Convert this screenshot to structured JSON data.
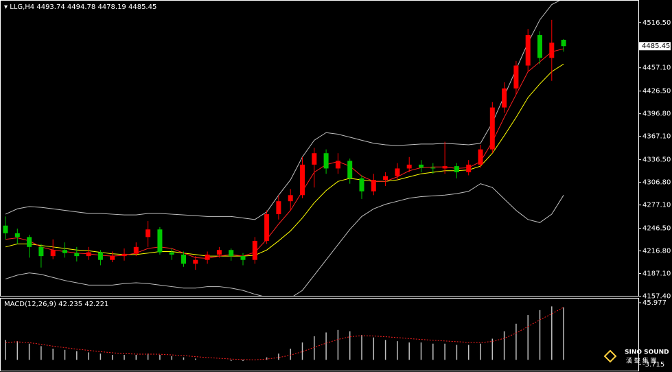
{
  "chart_data": [
    {
      "type": "candlestick",
      "title": "LLG,H4",
      "up_color": "#ff0000",
      "down_color": "#00c800",
      "wick_color": "#ffffff",
      "ylim": [
        4157,
        4546
      ],
      "yticks": [
        {
          "value": 4516.5,
          "label": "4516.50"
        },
        {
          "value": 4457.1,
          "label": "4457.10"
        },
        {
          "value": 4426.5,
          "label": "4426.50"
        },
        {
          "value": 4396.8,
          "label": "4396.80"
        },
        {
          "value": 4367.1,
          "label": "4367.10"
        },
        {
          "value": 4336.5,
          "label": "4336.50"
        },
        {
          "value": 4306.8,
          "label": "4306.80"
        },
        {
          "value": 4277.1,
          "label": "4277.10"
        },
        {
          "value": 4246.5,
          "label": "4246.50"
        },
        {
          "value": 4216.8,
          "label": "4216.80"
        },
        {
          "value": 4187.1,
          "label": "4187.10"
        },
        {
          "value": 4157.4,
          "label": "4157.40"
        }
      ],
      "open": [
        4250,
        4240,
        4235,
        4222,
        4210,
        4218,
        4214,
        4210,
        4215,
        4205,
        4210,
        4213,
        4235,
        4245,
        4215,
        4212,
        4200,
        4205,
        4212,
        4218,
        4210,
        4205,
        4230,
        4265,
        4282,
        4290,
        4330,
        4345,
        4325,
        4335,
        4312,
        4295,
        4310,
        4315,
        4325,
        4330,
        4326,
        4325,
        4328,
        4320,
        4330,
        4350,
        4405,
        4430,
        4460,
        4500,
        4470,
        4493.74
      ],
      "high": [
        4262,
        4246,
        4238,
        4226,
        4232,
        4228,
        4222,
        4222,
        4218,
        4216,
        4220,
        4228,
        4256,
        4248,
        4220,
        4216,
        4210,
        4216,
        4222,
        4220,
        4214,
        4235,
        4270,
        4290,
        4298,
        4340,
        4352,
        4350,
        4345,
        4338,
        4316,
        4318,
        4320,
        4332,
        4340,
        4336,
        4332,
        4360,
        4332,
        4336,
        4356,
        4412,
        4438,
        4466,
        4508,
        4505,
        4520,
        4494.78
      ],
      "low": [
        4232,
        4226,
        4208,
        4195,
        4206,
        4208,
        4203,
        4205,
        4198,
        4202,
        4204,
        4210,
        4222,
        4212,
        4205,
        4196,
        4192,
        4200,
        4208,
        4204,
        4198,
        4200,
        4226,
        4258,
        4270,
        4286,
        4300,
        4318,
        4318,
        4305,
        4285,
        4290,
        4302,
        4310,
        4320,
        4320,
        4318,
        4318,
        4312,
        4316,
        4326,
        4345,
        4398,
        4422,
        4452,
        4462,
        4440,
        4478.19
      ],
      "close": [
        4240,
        4235,
        4222,
        4210,
        4218,
        4214,
        4210,
        4215,
        4205,
        4210,
        4213,
        4222,
        4245,
        4215,
        4212,
        4200,
        4205,
        4212,
        4218,
        4210,
        4205,
        4230,
        4265,
        4282,
        4290,
        4330,
        4345,
        4325,
        4335,
        4312,
        4295,
        4310,
        4315,
        4325,
        4330,
        4326,
        4325,
        4328,
        4320,
        4330,
        4350,
        4405,
        4430,
        4460,
        4500,
        4470,
        4490,
        4485.45
      ],
      "band_color": "#c0c0c0",
      "bands_upper": [
        4265,
        4272,
        4275,
        4274,
        4272,
        4270,
        4268,
        4266,
        4266,
        4265,
        4264,
        4264,
        4266,
        4266,
        4265,
        4264,
        4263,
        4262,
        4262,
        4262,
        4260,
        4258,
        4268,
        4290,
        4310,
        4340,
        4362,
        4372,
        4370,
        4366,
        4362,
        4358,
        4356,
        4355,
        4356,
        4357,
        4357,
        4358,
        4357,
        4356,
        4358,
        4385,
        4420,
        4455,
        4490,
        4520,
        4540,
        4548
      ],
      "bands_lower": [
        4180,
        4185,
        4188,
        4186,
        4182,
        4178,
        4175,
        4172,
        4172,
        4172,
        4174,
        4175,
        4174,
        4172,
        4170,
        4168,
        4168,
        4170,
        4170,
        4168,
        4165,
        4160,
        4156,
        4154,
        4155,
        4165,
        4185,
        4205,
        4225,
        4245,
        4262,
        4272,
        4278,
        4282,
        4286,
        4288,
        4289,
        4290,
        4292,
        4295,
        4305,
        4300,
        4285,
        4270,
        4258,
        4254,
        4265,
        4290
      ],
      "ma_fast_color": "#ff2020",
      "ma_fast": [
        4232,
        4234,
        4230,
        4222,
        4218,
        4216,
        4214,
        4213,
        4211,
        4210,
        4211,
        4214,
        4220,
        4222,
        4220,
        4214,
        4208,
        4207,
        4210,
        4212,
        4210,
        4215,
        4232,
        4252,
        4270,
        4295,
        4320,
        4330,
        4334,
        4328,
        4315,
        4308,
        4308,
        4314,
        4322,
        4326,
        4327,
        4327,
        4325,
        4326,
        4334,
        4360,
        4392,
        4422,
        4452,
        4465,
        4478,
        4482
      ],
      "ma_slow_color": "#ffff00",
      "ma_slow": [
        4222,
        4226,
        4226,
        4224,
        4222,
        4220,
        4218,
        4217,
        4215,
        4213,
        4212,
        4212,
        4214,
        4216,
        4216,
        4214,
        4212,
        4210,
        4210,
        4210,
        4210,
        4211,
        4218,
        4230,
        4243,
        4260,
        4280,
        4296,
        4308,
        4312,
        4310,
        4308,
        4308,
        4310,
        4314,
        4318,
        4320,
        4322,
        4322,
        4323,
        4328,
        4345,
        4368,
        4392,
        4418,
        4436,
        4452,
        4462
      ]
    },
    {
      "type": "macd",
      "title": "MACD(12,26,9)",
      "ylim": [
        -3.715,
        45.977
      ],
      "yticks": [
        45.977,
        -3.715
      ],
      "hist_color": "#c0c0c0",
      "signal_color": "#ff2020",
      "values": [
        16,
        15,
        13,
        11,
        9,
        8,
        7,
        6,
        5,
        4,
        4,
        4,
        5,
        4,
        3,
        2,
        1,
        0,
        0,
        -1,
        -1,
        0,
        2,
        5,
        9,
        14,
        19,
        22,
        24,
        23,
        20,
        18,
        16,
        15,
        14,
        14,
        13,
        13,
        12,
        12,
        13,
        17,
        23,
        29,
        36,
        40,
        43,
        42.235
      ],
      "signal": [
        14,
        14.5,
        13.8,
        12.5,
        11,
        9.8,
        8.6,
        7.6,
        6.6,
        5.7,
        5,
        4.6,
        4.6,
        4.5,
        4,
        3.4,
        2.6,
        1.8,
        1.2,
        0.6,
        0.2,
        0,
        0.6,
        1.8,
        3.8,
        6.6,
        10,
        13.4,
        16.4,
        18.6,
        19.4,
        19.2,
        18.6,
        17.9,
        17.1,
        16.4,
        15.8,
        15.2,
        14.6,
        14.1,
        13.9,
        14.8,
        17.3,
        21.5,
        26.8,
        32.2,
        37,
        42.221
      ]
    }
  ],
  "watermark": {
    "text": "SINO SOUND",
    "subtext": "漢 聲 集 團"
  }
}
